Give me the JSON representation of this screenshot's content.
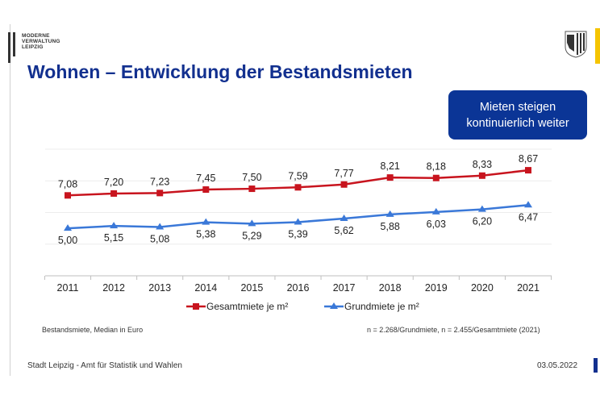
{
  "logo": {
    "text": [
      "MODERNE",
      "VERWALTUNG",
      "LEIPZIG"
    ]
  },
  "title": "Wohnen – Entwicklung der Bestandsmieten",
  "callout": {
    "line1": "Mieten steigen",
    "line2": "kontinuierlich weiter"
  },
  "colors": {
    "title": "#12308f",
    "callout": "#0b3596",
    "gesamtmiete": "#c8141e",
    "grundmiete": "#3a78d8",
    "accent_yellow": "#f5c400"
  },
  "chart_data": {
    "type": "line",
    "categories": [
      "2011",
      "2012",
      "2013",
      "2014",
      "2015",
      "2016",
      "2017",
      "2018",
      "2019",
      "2020",
      "2021"
    ],
    "series": [
      {
        "name": "Gesamtmiete je m²",
        "marker": "square",
        "color": "#c8141e",
        "values": [
          7.08,
          7.2,
          7.23,
          7.45,
          7.5,
          7.59,
          7.77,
          8.21,
          8.18,
          8.33,
          8.67
        ],
        "labels": [
          "7,08",
          "7,20",
          "7,23",
          "7,45",
          "7,50",
          "7,59",
          "7,77",
          "8,21",
          "8,18",
          "8,33",
          "8,67"
        ]
      },
      {
        "name": "Grundmiete je m²",
        "marker": "triangle",
        "color": "#3a78d8",
        "values": [
          5.0,
          5.15,
          5.08,
          5.38,
          5.29,
          5.39,
          5.62,
          5.88,
          6.03,
          6.2,
          6.47
        ],
        "labels": [
          "5,00",
          "5,15",
          "5,08",
          "5,38",
          "5,29",
          "5,39",
          "5,62",
          "5,88",
          "6,03",
          "6,20",
          "6,47"
        ]
      }
    ],
    "ylim": [
      2,
      10
    ],
    "grid": true,
    "y_axis_visible": false,
    "legend": "bottom"
  },
  "notes": {
    "left": "Bestandsmiete, Median in Euro",
    "right": "n = 2.268/Grundmiete, n = 2.455/Gesamtmiete (2021)"
  },
  "footer": {
    "org": "Stadt Leipzig  -  Amt für Statistik und Wahlen",
    "date": "03.05.2022"
  }
}
